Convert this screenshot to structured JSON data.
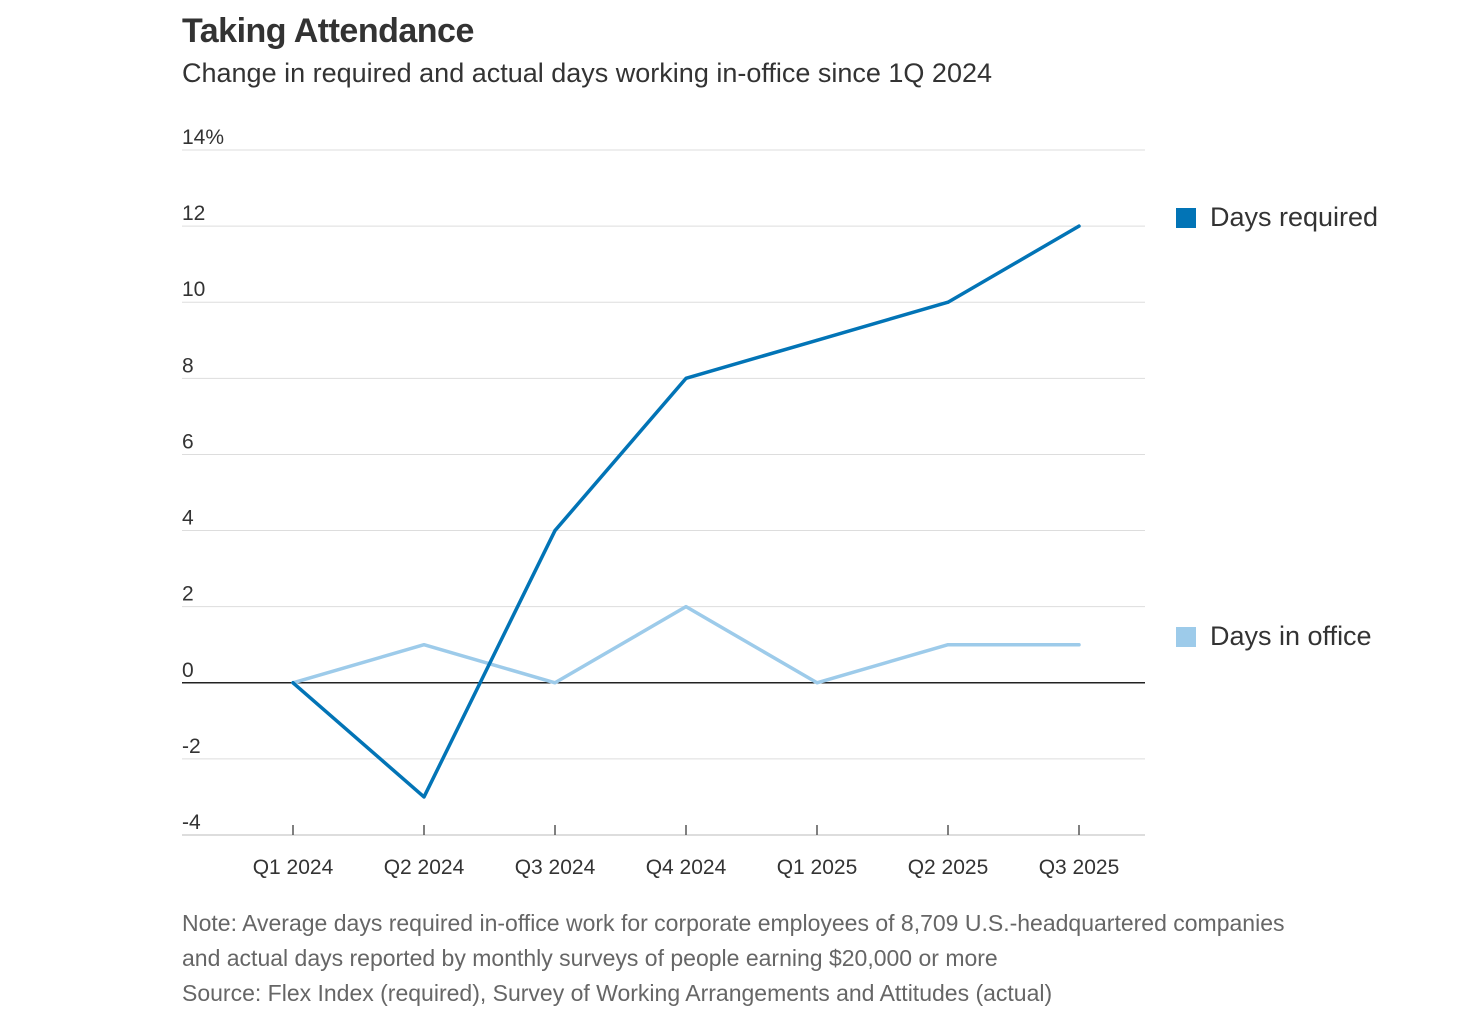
{
  "chart_data": {
    "type": "line",
    "title": "Taking Attendance",
    "subtitle": "Change in required and actual days working in-office since 1Q 2024",
    "categories": [
      "Q1 2024",
      "Q2 2024",
      "Q3 2024",
      "Q4 2024",
      "Q1 2025",
      "Q2 2025",
      "Q3 2025"
    ],
    "series": [
      {
        "name": "Days required",
        "color": "#0274b6",
        "values": [
          0,
          -3,
          4,
          8,
          9,
          10,
          12
        ]
      },
      {
        "name": "Days in office",
        "color": "#9dcbea",
        "values": [
          0,
          1,
          0,
          2,
          0,
          1,
          1
        ]
      }
    ],
    "ylim": [
      -4,
      14
    ],
    "yticks": [
      14,
      12,
      10,
      8,
      6,
      4,
      2,
      0,
      -2,
      -4
    ],
    "ytick_labels": [
      "14%",
      "12",
      "10",
      "8",
      "6",
      "4",
      "2",
      "0",
      "-2",
      "-4"
    ],
    "grid": true,
    "legend_position": "right",
    "note_lines": [
      "Note: Average days required in-office work for corporate employees of 8,709 U.S.-headquartered companies",
      "and actual days reported by monthly surveys of people earning $20,000 or more"
    ],
    "source": "Source: Flex Index (required), Survey of Working Arrangements and Attitudes (actual)"
  }
}
